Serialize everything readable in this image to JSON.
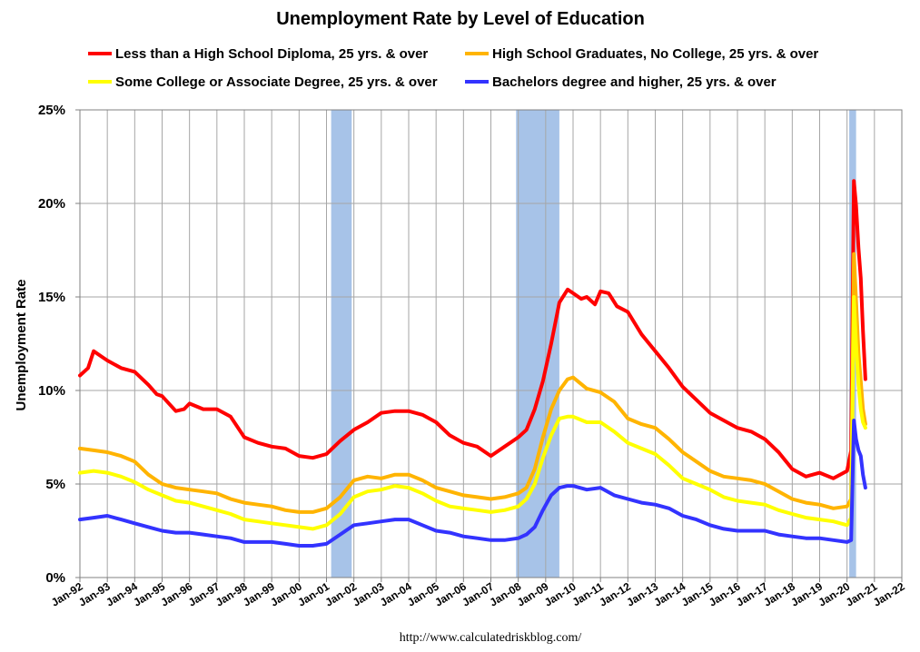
{
  "chart_data": {
    "type": "line",
    "title": "Unemployment Rate by Level of Education",
    "ylabel": "Unemployment Rate",
    "xlabel": "",
    "source": "http://www.calculatedriskblog.com/",
    "ylim": [
      0,
      25
    ],
    "xlim": [
      1992.0,
      2022.0
    ],
    "y_ticks": [
      0,
      5,
      10,
      15,
      20,
      25
    ],
    "y_tick_labels": [
      "0%",
      "5%",
      "10%",
      "15%",
      "20%",
      "25%"
    ],
    "x_tick_labels": [
      "Jan-92",
      "Jan-93",
      "Jan-94",
      "Jan-95",
      "Jan-96",
      "Jan-97",
      "Jan-98",
      "Jan-99",
      "Jan-00",
      "Jan-01",
      "Jan-02",
      "Jan-03",
      "Jan-04",
      "Jan-05",
      "Jan-06",
      "Jan-07",
      "Jan-08",
      "Jan-09",
      "Jan-10",
      "Jan-11",
      "Jan-12",
      "Jan-13",
      "Jan-14",
      "Jan-15",
      "Jan-16",
      "Jan-17",
      "Jan-18",
      "Jan-19",
      "Jan-20",
      "Jan-21",
      "Jan-22"
    ],
    "grid": true,
    "legend_position": "top",
    "recessions": [
      [
        2001.17,
        2001.92
      ],
      [
        2007.92,
        2009.5
      ],
      [
        2020.08,
        2020.33
      ]
    ],
    "recession_color": "#a7c3e8",
    "series": [
      {
        "name": "Less than a High School Diploma, 25 yrs. & over",
        "color": "#ff0000",
        "x": [
          1992.0,
          1992.3,
          1992.5,
          1992.8,
          1993.0,
          1993.5,
          1994.0,
          1994.5,
          1994.8,
          1995.0,
          1995.5,
          1995.8,
          1996.0,
          1996.5,
          1997.0,
          1997.5,
          1998.0,
          1998.5,
          1999.0,
          1999.5,
          2000.0,
          2000.5,
          2001.0,
          2001.5,
          2002.0,
          2002.5,
          2003.0,
          2003.5,
          2004.0,
          2004.5,
          2005.0,
          2005.5,
          2006.0,
          2006.5,
          2007.0,
          2007.5,
          2008.0,
          2008.3,
          2008.6,
          2008.9,
          2009.2,
          2009.5,
          2009.8,
          2010.0,
          2010.3,
          2010.5,
          2010.8,
          2011.0,
          2011.3,
          2011.6,
          2012.0,
          2012.5,
          2013.0,
          2013.5,
          2014.0,
          2014.5,
          2015.0,
          2015.5,
          2016.0,
          2016.5,
          2017.0,
          2017.5,
          2018.0,
          2018.5,
          2019.0,
          2019.5,
          2020.0,
          2020.15,
          2020.25,
          2020.33,
          2020.42,
          2020.5,
          2020.58,
          2020.67
        ],
        "values": [
          10.8,
          11.2,
          12.1,
          11.8,
          11.6,
          11.2,
          11.0,
          10.3,
          9.8,
          9.7,
          8.9,
          9.0,
          9.3,
          9.0,
          9.0,
          8.6,
          7.5,
          7.2,
          7.0,
          6.9,
          6.5,
          6.4,
          6.6,
          7.3,
          7.9,
          8.3,
          8.8,
          8.9,
          8.9,
          8.7,
          8.3,
          7.6,
          7.2,
          7.0,
          6.5,
          7.0,
          7.5,
          7.9,
          9.0,
          10.5,
          12.5,
          14.7,
          15.4,
          15.2,
          14.9,
          15.0,
          14.6,
          15.3,
          15.2,
          14.5,
          14.2,
          13.0,
          12.1,
          11.2,
          10.2,
          9.5,
          8.8,
          8.4,
          8.0,
          7.8,
          7.4,
          6.7,
          5.8,
          5.4,
          5.6,
          5.3,
          5.7,
          6.8,
          21.2,
          19.9,
          17.6,
          16.0,
          13.2,
          10.6
        ]
      },
      {
        "name": "High School Graduates, No College, 25 yrs. & over",
        "color": "#ffb400",
        "x": [
          1992.0,
          1992.5,
          1993.0,
          1993.5,
          1994.0,
          1994.5,
          1995.0,
          1995.5,
          1996.0,
          1996.5,
          1997.0,
          1997.5,
          1998.0,
          1998.5,
          1999.0,
          1999.5,
          2000.0,
          2000.5,
          2001.0,
          2001.5,
          2002.0,
          2002.5,
          2003.0,
          2003.5,
          2004.0,
          2004.5,
          2005.0,
          2005.5,
          2006.0,
          2006.5,
          2007.0,
          2007.5,
          2008.0,
          2008.3,
          2008.6,
          2008.9,
          2009.2,
          2009.5,
          2009.8,
          2010.0,
          2010.5,
          2011.0,
          2011.5,
          2012.0,
          2012.5,
          2013.0,
          2013.5,
          2014.0,
          2014.5,
          2015.0,
          2015.5,
          2016.0,
          2016.5,
          2017.0,
          2017.5,
          2018.0,
          2018.5,
          2019.0,
          2019.5,
          2020.0,
          2020.15,
          2020.25,
          2020.33,
          2020.42,
          2020.5,
          2020.58,
          2020.67
        ],
        "values": [
          6.9,
          6.8,
          6.7,
          6.5,
          6.2,
          5.5,
          5.0,
          4.8,
          4.7,
          4.6,
          4.5,
          4.2,
          4.0,
          3.9,
          3.8,
          3.6,
          3.5,
          3.5,
          3.7,
          4.3,
          5.2,
          5.4,
          5.3,
          5.5,
          5.5,
          5.2,
          4.8,
          4.6,
          4.4,
          4.3,
          4.2,
          4.3,
          4.5,
          4.8,
          5.8,
          7.5,
          9.0,
          10.0,
          10.6,
          10.7,
          10.1,
          9.9,
          9.4,
          8.5,
          8.2,
          8.0,
          7.4,
          6.7,
          6.2,
          5.7,
          5.4,
          5.3,
          5.2,
          5.0,
          4.6,
          4.2,
          4.0,
          3.9,
          3.7,
          3.8,
          4.2,
          17.3,
          14.8,
          12.0,
          10.5,
          9.0,
          8.2
        ]
      },
      {
        "name": "Some College or Associate Degree, 25 yrs. & over",
        "color": "#ffff00",
        "x": [
          1992.0,
          1992.5,
          1993.0,
          1993.5,
          1994.0,
          1994.5,
          1995.0,
          1995.5,
          1996.0,
          1996.5,
          1997.0,
          1997.5,
          1998.0,
          1998.5,
          1999.0,
          1999.5,
          2000.0,
          2000.5,
          2001.0,
          2001.5,
          2002.0,
          2002.5,
          2003.0,
          2003.5,
          2004.0,
          2004.5,
          2005.0,
          2005.5,
          2006.0,
          2006.5,
          2007.0,
          2007.5,
          2008.0,
          2008.3,
          2008.6,
          2008.9,
          2009.2,
          2009.5,
          2009.8,
          2010.0,
          2010.5,
          2011.0,
          2011.5,
          2012.0,
          2012.5,
          2013.0,
          2013.5,
          2014.0,
          2014.5,
          2015.0,
          2015.5,
          2016.0,
          2016.5,
          2017.0,
          2017.5,
          2018.0,
          2018.5,
          2019.0,
          2019.5,
          2020.0,
          2020.15,
          2020.25,
          2020.33,
          2020.42,
          2020.5,
          2020.58,
          2020.67
        ],
        "values": [
          5.6,
          5.7,
          5.6,
          5.4,
          5.1,
          4.7,
          4.4,
          4.1,
          4.0,
          3.8,
          3.6,
          3.4,
          3.1,
          3.0,
          2.9,
          2.8,
          2.7,
          2.6,
          2.8,
          3.4,
          4.3,
          4.6,
          4.7,
          4.9,
          4.8,
          4.5,
          4.1,
          3.8,
          3.7,
          3.6,
          3.5,
          3.6,
          3.8,
          4.2,
          5.0,
          6.4,
          7.6,
          8.5,
          8.6,
          8.6,
          8.3,
          8.3,
          7.8,
          7.2,
          6.9,
          6.6,
          6.0,
          5.3,
          5.0,
          4.7,
          4.3,
          4.1,
          4.0,
          3.9,
          3.6,
          3.4,
          3.2,
          3.1,
          3.0,
          2.8,
          3.2,
          15.0,
          12.5,
          10.3,
          9.0,
          8.3,
          8.0
        ]
      },
      {
        "name": "Bachelors degree and higher, 25 yrs. & over",
        "color": "#3333ff",
        "x": [
          1992.0,
          1992.5,
          1993.0,
          1993.5,
          1994.0,
          1994.5,
          1995.0,
          1995.5,
          1996.0,
          1996.5,
          1997.0,
          1997.5,
          1998.0,
          1998.5,
          1999.0,
          1999.5,
          2000.0,
          2000.5,
          2001.0,
          2001.5,
          2002.0,
          2002.5,
          2003.0,
          2003.5,
          2004.0,
          2004.5,
          2005.0,
          2005.5,
          2006.0,
          2006.5,
          2007.0,
          2007.5,
          2008.0,
          2008.3,
          2008.6,
          2008.9,
          2009.2,
          2009.5,
          2009.8,
          2010.0,
          2010.5,
          2011.0,
          2011.5,
          2012.0,
          2012.5,
          2013.0,
          2013.5,
          2014.0,
          2014.5,
          2015.0,
          2015.5,
          2016.0,
          2016.5,
          2017.0,
          2017.5,
          2018.0,
          2018.5,
          2019.0,
          2019.5,
          2020.0,
          2020.15,
          2020.25,
          2020.33,
          2020.42,
          2020.5,
          2020.58,
          2020.67
        ],
        "values": [
          3.1,
          3.2,
          3.3,
          3.1,
          2.9,
          2.7,
          2.5,
          2.4,
          2.4,
          2.3,
          2.2,
          2.1,
          1.9,
          1.9,
          1.9,
          1.8,
          1.7,
          1.7,
          1.8,
          2.3,
          2.8,
          2.9,
          3.0,
          3.1,
          3.1,
          2.8,
          2.5,
          2.4,
          2.2,
          2.1,
          2.0,
          2.0,
          2.1,
          2.3,
          2.7,
          3.6,
          4.4,
          4.8,
          4.9,
          4.9,
          4.7,
          4.8,
          4.4,
          4.2,
          4.0,
          3.9,
          3.7,
          3.3,
          3.1,
          2.8,
          2.6,
          2.5,
          2.5,
          2.5,
          2.3,
          2.2,
          2.1,
          2.1,
          2.0,
          1.9,
          2.0,
          8.4,
          7.4,
          6.8,
          6.5,
          5.5,
          4.8
        ]
      }
    ]
  }
}
